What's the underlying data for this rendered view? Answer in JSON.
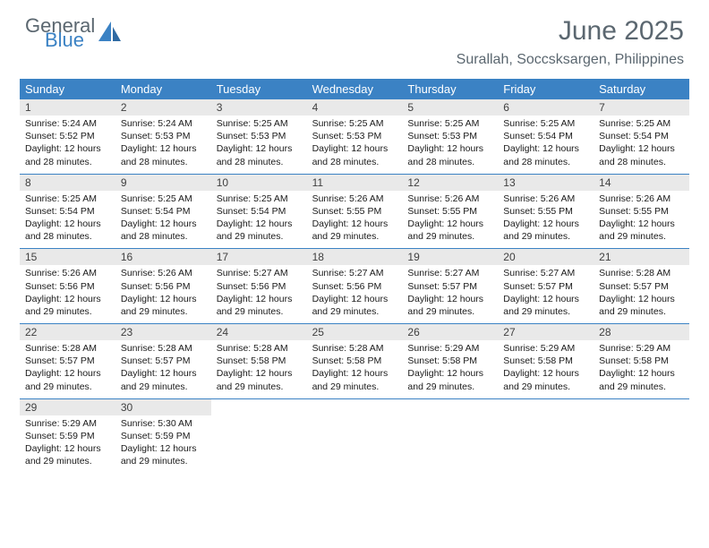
{
  "brand": {
    "word1": "General",
    "word2": "Blue"
  },
  "title": "June 2025",
  "location": "Surallah, Soccsksargen, Philippines",
  "colors": {
    "header_bg": "#3b82c4",
    "daynum_bg": "#e9e9e9",
    "text_muted": "#5b6770",
    "rule": "#3b82c4"
  },
  "weekdays": [
    "Sunday",
    "Monday",
    "Tuesday",
    "Wednesday",
    "Thursday",
    "Friday",
    "Saturday"
  ],
  "weeks": [
    [
      {
        "n": "1",
        "sr": "5:24 AM",
        "ss": "5:52 PM",
        "dl": "12 hours and 28 minutes."
      },
      {
        "n": "2",
        "sr": "5:24 AM",
        "ss": "5:53 PM",
        "dl": "12 hours and 28 minutes."
      },
      {
        "n": "3",
        "sr": "5:25 AM",
        "ss": "5:53 PM",
        "dl": "12 hours and 28 minutes."
      },
      {
        "n": "4",
        "sr": "5:25 AM",
        "ss": "5:53 PM",
        "dl": "12 hours and 28 minutes."
      },
      {
        "n": "5",
        "sr": "5:25 AM",
        "ss": "5:53 PM",
        "dl": "12 hours and 28 minutes."
      },
      {
        "n": "6",
        "sr": "5:25 AM",
        "ss": "5:54 PM",
        "dl": "12 hours and 28 minutes."
      },
      {
        "n": "7",
        "sr": "5:25 AM",
        "ss": "5:54 PM",
        "dl": "12 hours and 28 minutes."
      }
    ],
    [
      {
        "n": "8",
        "sr": "5:25 AM",
        "ss": "5:54 PM",
        "dl": "12 hours and 28 minutes."
      },
      {
        "n": "9",
        "sr": "5:25 AM",
        "ss": "5:54 PM",
        "dl": "12 hours and 28 minutes."
      },
      {
        "n": "10",
        "sr": "5:25 AM",
        "ss": "5:54 PM",
        "dl": "12 hours and 29 minutes."
      },
      {
        "n": "11",
        "sr": "5:26 AM",
        "ss": "5:55 PM",
        "dl": "12 hours and 29 minutes."
      },
      {
        "n": "12",
        "sr": "5:26 AM",
        "ss": "5:55 PM",
        "dl": "12 hours and 29 minutes."
      },
      {
        "n": "13",
        "sr": "5:26 AM",
        "ss": "5:55 PM",
        "dl": "12 hours and 29 minutes."
      },
      {
        "n": "14",
        "sr": "5:26 AM",
        "ss": "5:55 PM",
        "dl": "12 hours and 29 minutes."
      }
    ],
    [
      {
        "n": "15",
        "sr": "5:26 AM",
        "ss": "5:56 PM",
        "dl": "12 hours and 29 minutes."
      },
      {
        "n": "16",
        "sr": "5:26 AM",
        "ss": "5:56 PM",
        "dl": "12 hours and 29 minutes."
      },
      {
        "n": "17",
        "sr": "5:27 AM",
        "ss": "5:56 PM",
        "dl": "12 hours and 29 minutes."
      },
      {
        "n": "18",
        "sr": "5:27 AM",
        "ss": "5:56 PM",
        "dl": "12 hours and 29 minutes."
      },
      {
        "n": "19",
        "sr": "5:27 AM",
        "ss": "5:57 PM",
        "dl": "12 hours and 29 minutes."
      },
      {
        "n": "20",
        "sr": "5:27 AM",
        "ss": "5:57 PM",
        "dl": "12 hours and 29 minutes."
      },
      {
        "n": "21",
        "sr": "5:28 AM",
        "ss": "5:57 PM",
        "dl": "12 hours and 29 minutes."
      }
    ],
    [
      {
        "n": "22",
        "sr": "5:28 AM",
        "ss": "5:57 PM",
        "dl": "12 hours and 29 minutes."
      },
      {
        "n": "23",
        "sr": "5:28 AM",
        "ss": "5:57 PM",
        "dl": "12 hours and 29 minutes."
      },
      {
        "n": "24",
        "sr": "5:28 AM",
        "ss": "5:58 PM",
        "dl": "12 hours and 29 minutes."
      },
      {
        "n": "25",
        "sr": "5:28 AM",
        "ss": "5:58 PM",
        "dl": "12 hours and 29 minutes."
      },
      {
        "n": "26",
        "sr": "5:29 AM",
        "ss": "5:58 PM",
        "dl": "12 hours and 29 minutes."
      },
      {
        "n": "27",
        "sr": "5:29 AM",
        "ss": "5:58 PM",
        "dl": "12 hours and 29 minutes."
      },
      {
        "n": "28",
        "sr": "5:29 AM",
        "ss": "5:58 PM",
        "dl": "12 hours and 29 minutes."
      }
    ],
    [
      {
        "n": "29",
        "sr": "5:29 AM",
        "ss": "5:59 PM",
        "dl": "12 hours and 29 minutes."
      },
      {
        "n": "30",
        "sr": "5:30 AM",
        "ss": "5:59 PM",
        "dl": "12 hours and 29 minutes."
      },
      null,
      null,
      null,
      null,
      null
    ]
  ],
  "labels": {
    "sunrise": "Sunrise: ",
    "sunset": "Sunset: ",
    "daylight": "Daylight: "
  }
}
